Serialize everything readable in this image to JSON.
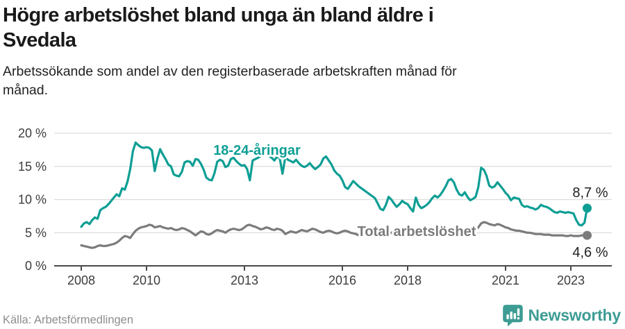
{
  "header": {
    "title": "Högre arbetslöshet bland unga än bland äldre i Svedala",
    "subtitle": "Arbetssökande som andel av den registerbaserade arbetskraften månad för månad."
  },
  "footer": {
    "source": "Källa: Arbetsförmedlingen",
    "logo_text": "Newsworthy",
    "logo_icon": "newsworthy-speech-bubble-barchart-icon",
    "logo_color": "#3d9c94"
  },
  "chart_data": {
    "type": "line",
    "title": "Högre arbetslöshet bland unga än bland äldre i Svedala",
    "x_unit": "month",
    "x_start": "2008-01",
    "x_end": "2023-07",
    "ylim": [
      0,
      21
    ],
    "grid": "horizontal",
    "y_ticks": [
      {
        "label": "0 %",
        "value": 0
      },
      {
        "label": "5 %",
        "value": 5
      },
      {
        "label": "10 %",
        "value": 10
      },
      {
        "label": "15 %",
        "value": 15
      },
      {
        "label": "20 %",
        "value": 20
      }
    ],
    "x_ticks": [
      {
        "label": "2008",
        "year": 2008
      },
      {
        "label": "2010",
        "year": 2010
      },
      {
        "label": "2013",
        "year": 2013
      },
      {
        "label": "2016",
        "year": 2016
      },
      {
        "label": "2018",
        "year": 2018
      },
      {
        "label": "2021",
        "year": 2021
      },
      {
        "label": "2023",
        "year": 2023
      }
    ],
    "series": [
      {
        "key": "total",
        "name": "Total arbetslöshet",
        "color": "#7b7b7b",
        "end_label": "4,6 %",
        "end_value": 4.6,
        "values": [
          3.1,
          3.0,
          2.9,
          2.8,
          2.7,
          2.8,
          3.0,
          3.1,
          3.0,
          3.0,
          3.1,
          3.2,
          3.3,
          3.5,
          3.8,
          4.2,
          4.5,
          4.4,
          4.2,
          4.8,
          5.3,
          5.6,
          5.8,
          5.9,
          6.0,
          6.2,
          6.1,
          5.8,
          5.9,
          6.0,
          5.8,
          5.7,
          5.6,
          5.7,
          5.5,
          5.4,
          5.5,
          5.7,
          5.6,
          5.4,
          5.2,
          4.9,
          4.6,
          4.9,
          5.2,
          5.1,
          4.8,
          4.7,
          4.9,
          5.2,
          5.4,
          5.3,
          5.2,
          5.0,
          5.3,
          5.5,
          5.6,
          5.5,
          5.4,
          5.5,
          5.8,
          6.1,
          6.2,
          6.0,
          5.9,
          5.7,
          5.5,
          5.6,
          5.8,
          5.7,
          5.5,
          5.4,
          5.6,
          5.5,
          5.3,
          4.8,
          5.0,
          5.2,
          5.1,
          5.0,
          5.2,
          5.4,
          5.3,
          5.2,
          5.4,
          5.6,
          5.5,
          5.3,
          5.1,
          5.0,
          5.2,
          5.3,
          5.2,
          5.0,
          4.9,
          5.0,
          5.2,
          5.3,
          5.2,
          5.0,
          4.9,
          4.8,
          4.6,
          4.8,
          5.0,
          5.1,
          5.0,
          4.9,
          5.0,
          5.1,
          5.0,
          4.8,
          4.7,
          4.8,
          5.0,
          5.1,
          5.2,
          5.1,
          5.0,
          4.9,
          5.0,
          5.1,
          5.0,
          4.9,
          4.7,
          4.6,
          4.8,
          5.0,
          5.1,
          5.0,
          4.9,
          4.8,
          4.9,
          5.0,
          5.1,
          5.0,
          4.9,
          5.0,
          5.1,
          5.2,
          5.1,
          5.0,
          5.1,
          5.2,
          5.3,
          5.4,
          5.8,
          6.4,
          6.6,
          6.5,
          6.3,
          6.2,
          6.1,
          6.3,
          6.2,
          6.0,
          5.8,
          5.7,
          5.5,
          5.4,
          5.3,
          5.3,
          5.2,
          5.1,
          5.0,
          5.0,
          4.9,
          4.8,
          4.8,
          4.8,
          4.7,
          4.7,
          4.7,
          4.6,
          4.6,
          4.6,
          4.6,
          4.6,
          4.5,
          4.5,
          4.6,
          4.5,
          4.5,
          4.5,
          4.6,
          4.6,
          4.6
        ]
      },
      {
        "key": "youth",
        "name": "18-24-åringar",
        "color": "#0d9e94",
        "end_label": "8,7 %",
        "end_value": 8.7,
        "values": [
          5.9,
          6.4,
          6.6,
          6.3,
          6.9,
          7.3,
          7.1,
          8.4,
          8.7,
          8.9,
          9.3,
          9.8,
          10.3,
          10.8,
          10.5,
          11.7,
          11.5,
          12.7,
          14.6,
          17.3,
          18.6,
          18.2,
          17.9,
          17.8,
          17.9,
          17.8,
          17.4,
          14.3,
          16.2,
          17.6,
          16.8,
          16.1,
          15.3,
          15.0,
          13.8,
          13.6,
          13.5,
          14.2,
          15.6,
          15.8,
          15.7,
          15.1,
          16.1,
          16.0,
          15.4,
          14.5,
          13.3,
          13.0,
          12.9,
          14.0,
          15.7,
          16.0,
          15.8,
          14.9,
          15.1,
          16.1,
          16.3,
          15.8,
          15.4,
          15.1,
          15.2,
          14.6,
          12.9,
          15.9,
          16.1,
          16.3,
          16.6,
          16.9,
          17.1,
          16.6,
          16.3,
          15.9,
          16.5,
          16.2,
          13.9,
          16.4,
          16.0,
          15.8,
          15.6,
          16.0,
          15.5,
          15.1,
          14.9,
          15.1,
          15.5,
          15.0,
          14.6,
          14.9,
          15.3,
          16.2,
          16.5,
          15.9,
          15.3,
          14.4,
          13.9,
          13.6,
          12.9,
          11.9,
          11.6,
          12.2,
          12.8,
          12.4,
          12.0,
          11.7,
          11.4,
          11.1,
          10.8,
          10.5,
          10.2,
          9.4,
          8.6,
          8.4,
          9.2,
          10.4,
          10.0,
          9.4,
          8.9,
          9.3,
          9.8,
          9.5,
          9.3,
          8.7,
          8.2,
          10.3,
          9.2,
          8.7,
          8.9,
          9.2,
          9.6,
          10.2,
          10.6,
          10.3,
          10.7,
          11.3,
          12.0,
          12.9,
          13.1,
          12.6,
          11.5,
          10.8,
          10.6,
          11.1,
          10.4,
          9.9,
          10.1,
          10.4,
          11.9,
          14.8,
          14.5,
          13.6,
          12.1,
          11.8,
          12.0,
          12.6,
          12.1,
          11.6,
          11.0,
          10.6,
          9.9,
          10.3,
          10.2,
          10.1,
          9.2,
          8.9,
          9.0,
          8.8,
          8.7,
          8.5,
          8.7,
          9.2,
          9.0,
          8.9,
          8.7,
          8.4,
          8.1,
          8.0,
          8.2,
          8.1,
          8.0,
          8.1,
          8.0,
          7.9,
          6.9,
          6.2,
          6.1,
          6.5,
          8.7
        ]
      }
    ],
    "legend_position": "inline-labels",
    "colors": {
      "grid": "#dcdcdc",
      "axis": "#4a4a4a",
      "tick_text": "#3c3c3c",
      "end_label_text": "#222222"
    }
  }
}
